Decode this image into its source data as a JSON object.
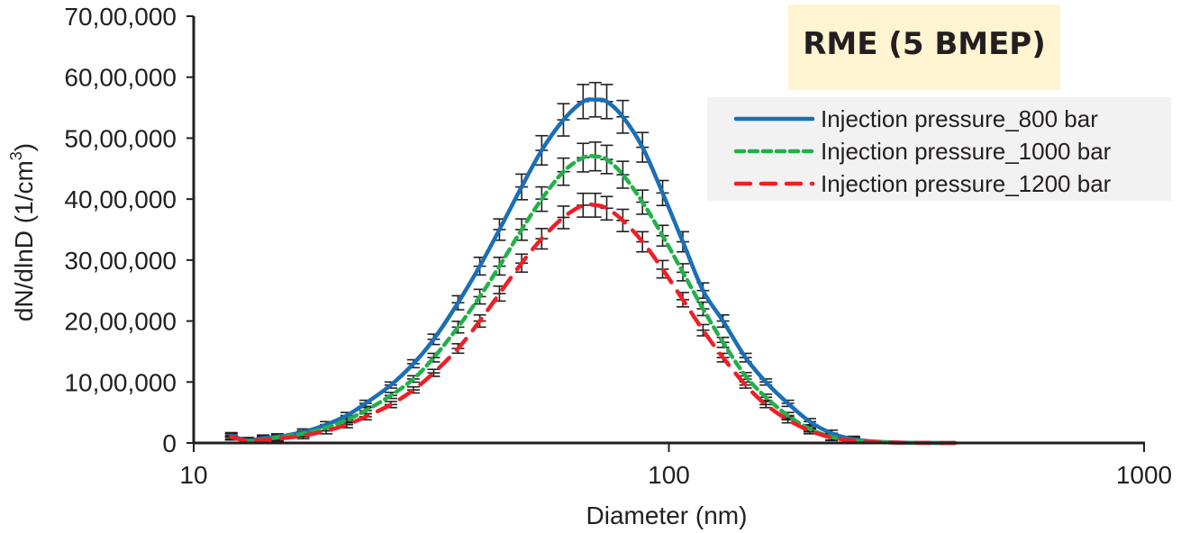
{
  "chart_data": {
    "type": "line",
    "title": "RME (5 BMEP)",
    "xlabel": "Diameter (nm)",
    "ylabel_parts": [
      "dN/dlnD (1/cm",
      "3",
      ")"
    ],
    "x_scale": "log",
    "xlim": [
      10,
      1000
    ],
    "ylim": [
      0,
      7000000
    ],
    "x_ticks": [
      10,
      100,
      1000
    ],
    "x_tick_labels": [
      "10",
      "100",
      "1000"
    ],
    "y_ticks": [
      0,
      1000000,
      2000000,
      3000000,
      4000000,
      5000000,
      6000000,
      7000000
    ],
    "y_tick_labels": [
      "0",
      "10,00,000",
      "20,00,000",
      "30,00,000",
      "40,00,000",
      "50,00,000",
      "60,00,000",
      "70,00,000"
    ],
    "grid": false,
    "legend_position": "top-right",
    "error_bars": "relative ±5% (min 50,000)",
    "x": [
      12,
      13,
      14,
      15,
      17,
      19,
      21,
      23,
      26,
      29,
      32,
      36,
      40,
      44,
      49,
      54,
      60,
      66,
      70,
      74,
      80,
      88,
      97,
      107,
      118,
      130,
      145,
      160,
      178,
      198,
      220,
      245,
      275,
      310,
      350,
      400
    ],
    "series": [
      {
        "name": "Injection pressure_800 bar",
        "color": "#1a6fb5",
        "dash": "solid",
        "values": [
          120000,
          40000,
          80000,
          100000,
          180000,
          300000,
          450000,
          650000,
          950000,
          1300000,
          1700000,
          2300000,
          2900000,
          3500000,
          4200000,
          4800000,
          5300000,
          5600000,
          5630000,
          5600000,
          5350000,
          4850000,
          4100000,
          3300000,
          2500000,
          2000000,
          1400000,
          1000000,
          650000,
          350000,
          160000,
          60000,
          20000,
          5000,
          1000,
          0
        ]
      },
      {
        "name": "Injection pressure_1000 bar",
        "color": "#22b04b",
        "dash": "dotted",
        "values": [
          100000,
          30000,
          60000,
          90000,
          150000,
          250000,
          380000,
          530000,
          780000,
          1050000,
          1400000,
          1900000,
          2400000,
          2900000,
          3500000,
          4000000,
          4450000,
          4680000,
          4700000,
          4650000,
          4400000,
          3950000,
          3400000,
          2800000,
          2200000,
          1650000,
          1100000,
          750000,
          450000,
          230000,
          100000,
          40000,
          15000,
          5000,
          1000,
          0
        ]
      },
      {
        "name": "Injection pressure_1200 bar",
        "color": "#ec2027",
        "dash": "dashed",
        "values": [
          100000,
          30000,
          50000,
          70000,
          120000,
          200000,
          300000,
          430000,
          630000,
          870000,
          1150000,
          1550000,
          2000000,
          2450000,
          2950000,
          3350000,
          3700000,
          3900000,
          3900000,
          3850000,
          3650000,
          3300000,
          2850000,
          2350000,
          1850000,
          1400000,
          950000,
          630000,
          380000,
          200000,
          90000,
          35000,
          12000,
          4000,
          1000,
          0
        ]
      }
    ]
  }
}
